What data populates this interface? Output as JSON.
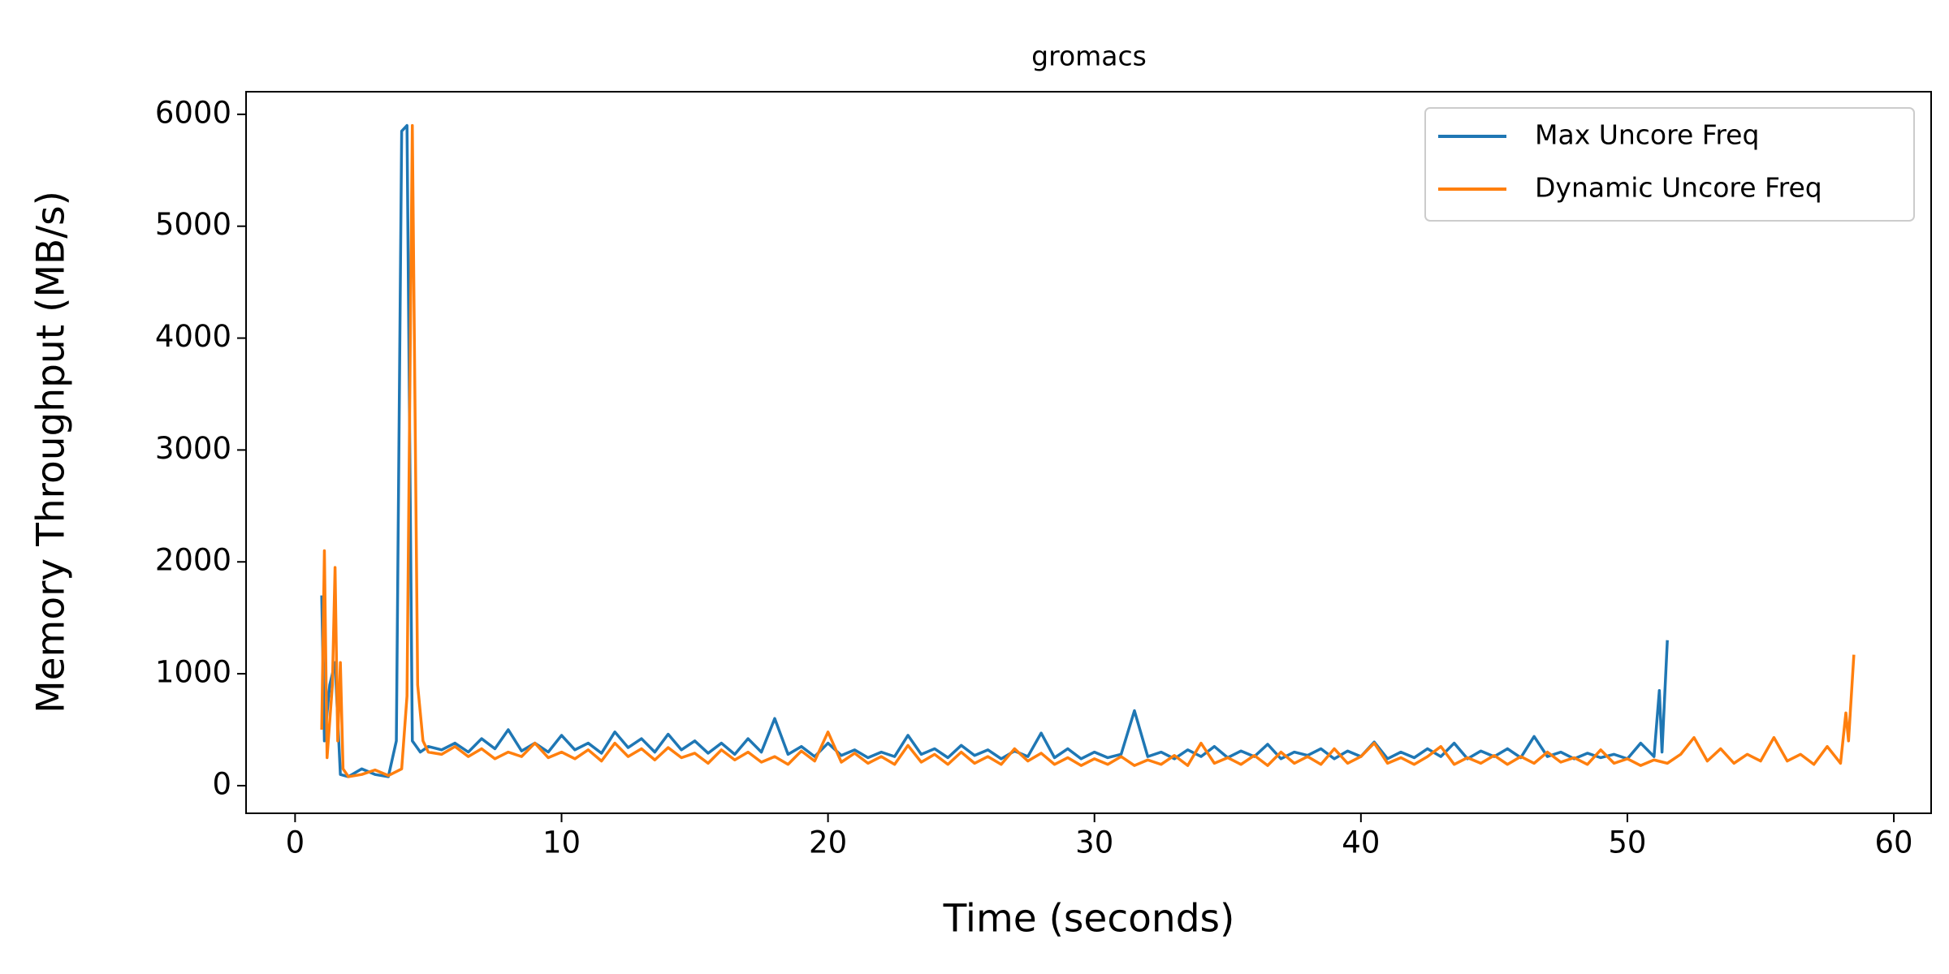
{
  "chart_data": {
    "type": "line",
    "title": "gromacs",
    "x_label": "Time (seconds)",
    "y_label": "Memory Throughput (MB/s)",
    "xlim": [
      -1.84,
      61.4
    ],
    "xticks": [
      0,
      10,
      20,
      30,
      40,
      50,
      60
    ],
    "ylim": [
      -247,
      6202
    ],
    "yticks": [
      0,
      1000,
      2000,
      3000,
      4000,
      5000,
      6000
    ],
    "grid": false,
    "legend": "upper right",
    "series": [
      {
        "name": "Max Uncore Freq",
        "color": "#1f77b4",
        "x": [
          1,
          1.1,
          1.3,
          1.5,
          1.7,
          2,
          2.5,
          3,
          3.5,
          3.8,
          4,
          4.2,
          4.4,
          4.7,
          5,
          5.5,
          6,
          6.5,
          7,
          7.5,
          8,
          8.5,
          9,
          9.5,
          10,
          10.5,
          11,
          11.5,
          12,
          12.5,
          13,
          13.5,
          14,
          14.5,
          15,
          15.5,
          16,
          16.5,
          17,
          17.5,
          18,
          18.5,
          19,
          19.5,
          20,
          20.5,
          21,
          21.5,
          22,
          22.5,
          23,
          23.5,
          24,
          24.5,
          25,
          25.5,
          26,
          26.5,
          27,
          27.5,
          28,
          28.5,
          29,
          29.5,
          30,
          30.5,
          31,
          31.5,
          32,
          32.5,
          33,
          33.5,
          34,
          34.5,
          35,
          35.5,
          36,
          36.5,
          37,
          37.5,
          38,
          38.5,
          39,
          39.5,
          40,
          40.5,
          41,
          41.5,
          42,
          42.5,
          43,
          43.5,
          44,
          44.5,
          45,
          45.5,
          46,
          46.5,
          47,
          47.5,
          48,
          48.5,
          49,
          49.5,
          50,
          50.5,
          51,
          51.2,
          51.3,
          51.5
        ],
        "values": [
          1700,
          400,
          900,
          1100,
          100,
          80,
          150,
          100,
          80,
          400,
          5850,
          5900,
          400,
          300,
          350,
          320,
          380,
          300,
          420,
          330,
          500,
          310,
          380,
          300,
          450,
          320,
          380,
          290,
          480,
          340,
          420,
          300,
          460,
          320,
          400,
          290,
          380,
          280,
          420,
          300,
          600,
          280,
          350,
          260,
          380,
          270,
          320,
          250,
          300,
          260,
          450,
          280,
          330,
          250,
          360,
          270,
          320,
          240,
          310,
          260,
          470,
          250,
          330,
          240,
          300,
          250,
          280,
          670,
          260,
          300,
          240,
          320,
          260,
          350,
          250,
          310,
          260,
          370,
          240,
          300,
          270,
          330,
          240,
          310,
          260,
          390,
          240,
          300,
          250,
          330,
          260,
          380,
          240,
          310,
          260,
          330,
          250,
          440,
          260,
          300,
          240,
          290,
          250,
          280,
          240,
          380,
          260,
          850,
          300,
          1300
        ]
      },
      {
        "name": "Dynamic Uncore Freq",
        "color": "#ff7f0e",
        "x": [
          1,
          1.1,
          1.2,
          1.4,
          1.5,
          1.6,
          1.7,
          1.8,
          2,
          2.5,
          3,
          3.5,
          4,
          4.2,
          4.4,
          4.6,
          4.8,
          5,
          5.5,
          6,
          6.5,
          7,
          7.5,
          8,
          8.5,
          9,
          9.5,
          10,
          10.5,
          11,
          11.5,
          12,
          12.5,
          13,
          13.5,
          14,
          14.5,
          15,
          15.5,
          16,
          16.5,
          17,
          17.5,
          18,
          18.5,
          19,
          19.5,
          20,
          20.5,
          21,
          21.5,
          22,
          22.5,
          23,
          23.5,
          24,
          24.5,
          25,
          25.5,
          26,
          26.5,
          27,
          27.5,
          28,
          28.5,
          29,
          29.5,
          30,
          30.5,
          31,
          31.5,
          32,
          32.5,
          33,
          33.5,
          34,
          34.5,
          35,
          35.5,
          36,
          36.5,
          37,
          37.5,
          38,
          38.5,
          39,
          39.5,
          40,
          40.5,
          41,
          41.5,
          42,
          42.5,
          43,
          43.5,
          44,
          44.5,
          45,
          45.5,
          46,
          46.5,
          47,
          47.5,
          48,
          48.5,
          49,
          49.5,
          50,
          50.5,
          51,
          51.5,
          52,
          52.5,
          53,
          53.5,
          54,
          54.5,
          55,
          55.5,
          56,
          56.5,
          57,
          57.5,
          58,
          58.2,
          58.3,
          58.5
        ],
        "values": [
          500,
          2100,
          250,
          900,
          1950,
          400,
          1100,
          150,
          80,
          100,
          140,
          90,
          150,
          800,
          5900,
          900,
          400,
          300,
          280,
          350,
          260,
          330,
          240,
          300,
          260,
          380,
          250,
          300,
          240,
          320,
          220,
          380,
          260,
          330,
          230,
          340,
          250,
          290,
          200,
          320,
          230,
          300,
          210,
          260,
          190,
          310,
          220,
          480,
          210,
          290,
          200,
          260,
          190,
          360,
          210,
          280,
          190,
          300,
          200,
          260,
          190,
          330,
          220,
          290,
          190,
          250,
          180,
          240,
          190,
          260,
          180,
          230,
          190,
          270,
          180,
          380,
          200,
          250,
          190,
          270,
          180,
          300,
          200,
          260,
          190,
          330,
          200,
          260,
          380,
          200,
          250,
          190,
          260,
          350,
          190,
          250,
          200,
          270,
          190,
          260,
          200,
          300,
          210,
          250,
          190,
          320,
          200,
          240,
          180,
          230,
          200,
          280,
          430,
          220,
          330,
          200,
          280,
          220,
          430,
          220,
          280,
          190,
          350,
          200,
          650,
          400,
          1170
        ]
      }
    ]
  }
}
